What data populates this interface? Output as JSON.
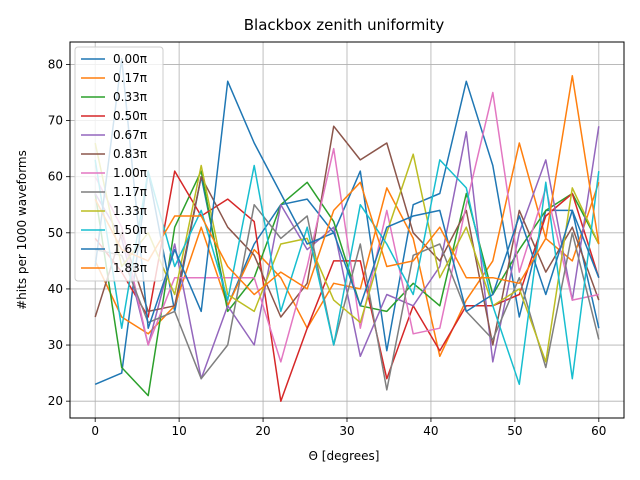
{
  "chart_data": {
    "type": "line",
    "title": "Blackbox zenith uniformity",
    "xlabel": "Θ [degrees]",
    "ylabel": "#hits per 1000 waveforms",
    "xlim": [
      -3,
      63
    ],
    "ylim": [
      17,
      84
    ],
    "xticks": [
      0,
      10,
      20,
      30,
      40,
      50,
      60
    ],
    "yticks": [
      20,
      30,
      40,
      50,
      60,
      70,
      80
    ],
    "grid": true,
    "legend_position": "top-left",
    "x": [
      0.0,
      3.16,
      6.32,
      9.47,
      12.63,
      15.79,
      18.95,
      22.11,
      25.26,
      28.42,
      31.58,
      34.74,
      37.89,
      41.05,
      44.21,
      47.37,
      50.53,
      53.68,
      56.84,
      60.0
    ],
    "series": [
      {
        "name": "0.00π",
        "color": "#1f77b4",
        "values": [
          23,
          25,
          61,
          36,
          60,
          37,
          48,
          55,
          56,
          50,
          61,
          29,
          55,
          57,
          77,
          62,
          35,
          54,
          54,
          33
        ]
      },
      {
        "name": "0.17π",
        "color": "#ff7f0e",
        "values": [
          45,
          35,
          32,
          37,
          51,
          37,
          47,
          42,
          33,
          41,
          40,
          58,
          49,
          28,
          38,
          45,
          66,
          49,
          45,
          59
        ]
      },
      {
        "name": "0.33π",
        "color": "#2ca02c",
        "values": [
          57,
          26,
          21,
          51,
          61,
          36,
          42,
          55,
          59,
          52,
          37,
          36,
          41,
          37,
          57,
          39,
          47,
          54,
          57,
          48
        ]
      },
      {
        "name": "0.50π",
        "color": "#d62728",
        "values": [
          49,
          43,
          35,
          61,
          53,
          56,
          52,
          20,
          33,
          45,
          45,
          24,
          37,
          29,
          37,
          37,
          39,
          53,
          57,
          42
        ]
      },
      {
        "name": "0.67π",
        "color": "#9467bd",
        "values": [
          57,
          49,
          30,
          48,
          24,
          37,
          30,
          55,
          47,
          51,
          28,
          39,
          37,
          44,
          68,
          27,
          50,
          63,
          38,
          69
        ]
      },
      {
        "name": "0.83π",
        "color": "#8c564b",
        "values": [
          35,
          50,
          36,
          37,
          60,
          51,
          46,
          35,
          41,
          69,
          63,
          66,
          50,
          45,
          54,
          30,
          54,
          43,
          51,
          38
        ]
      },
      {
        "name": "1.00π",
        "color": "#e377c2",
        "values": [
          60,
          51,
          30,
          42,
          42,
          42,
          42,
          27,
          44,
          65,
          33,
          54,
          32,
          33,
          55,
          75,
          43,
          58,
          38,
          39
        ]
      },
      {
        "name": "1.17π",
        "color": "#7f7f7f",
        "values": [
          47,
          46,
          34,
          36,
          24,
          30,
          55,
          49,
          53,
          30,
          48,
          22,
          46,
          48,
          36,
          31,
          42,
          26,
          50,
          31
        ]
      },
      {
        "name": "1.33π",
        "color": "#bcbd22",
        "values": [
          66,
          44,
          50,
          39,
          62,
          39,
          36,
          48,
          49,
          38,
          34,
          50,
          64,
          42,
          51,
          37,
          40,
          27,
          58,
          48
        ]
      },
      {
        "name": "1.50π",
        "color": "#17becf",
        "values": [
          63,
          33,
          61,
          44,
          54,
          38,
          62,
          36,
          51,
          30,
          55,
          48,
          39,
          63,
          58,
          37,
          23,
          59,
          24,
          61
        ]
      },
      {
        "name": "1.67π",
        "color": "#1f77b4",
        "values": [
          44,
          81,
          33,
          47,
          36,
          77,
          66,
          57,
          48,
          50,
          37,
          51,
          53,
          54,
          36,
          39,
          53,
          39,
          54,
          42
        ]
      },
      {
        "name": "1.83π",
        "color": "#ff7f0e",
        "values": [
          56,
          47,
          45,
          53,
          53,
          44,
          39,
          43,
          40,
          54,
          59,
          44,
          45,
          51,
          42,
          42,
          41,
          49,
          78,
          48
        ]
      }
    ]
  }
}
